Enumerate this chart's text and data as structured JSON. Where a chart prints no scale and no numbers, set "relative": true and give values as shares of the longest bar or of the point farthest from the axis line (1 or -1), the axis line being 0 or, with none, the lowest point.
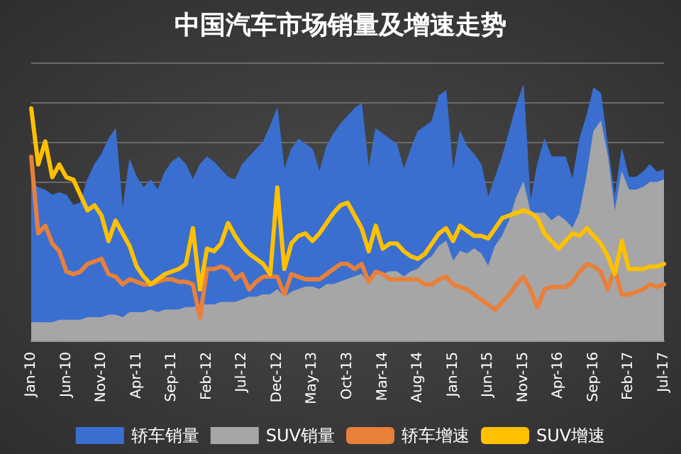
{
  "chart_data": {
    "type": "area",
    "title": "中国汽车市场销量及增速走势",
    "relative": true,
    "grid": "y",
    "legend": "bottom",
    "categories": [
      "Jan-10",
      null,
      null,
      null,
      null,
      "Jun-10",
      null,
      null,
      null,
      null,
      "Nov-10",
      null,
      null,
      null,
      null,
      "Apr-11",
      null,
      null,
      null,
      null,
      "Sep-11",
      null,
      null,
      null,
      null,
      "Feb-12",
      null,
      null,
      null,
      null,
      "Jul-12",
      null,
      null,
      null,
      null,
      "Dec-12",
      null,
      null,
      null,
      null,
      "May-13",
      null,
      null,
      null,
      null,
      "Oct-13",
      null,
      null,
      null,
      null,
      "Mar-14",
      null,
      null,
      null,
      null,
      "Aug-14",
      null,
      null,
      null,
      null,
      "Jan-15",
      null,
      null,
      null,
      null,
      "Jun-15",
      null,
      null,
      null,
      null,
      "Nov-15",
      null,
      null,
      null,
      null,
      "Apr-16",
      null,
      null,
      null,
      null,
      "Sep-16",
      null,
      null,
      null,
      null,
      "Feb-17",
      null,
      null,
      null,
      null,
      "Jul-17"
    ],
    "series": [
      {
        "name": "轿车销量",
        "color": "#3a6fd0",
        "values": [
          0.62,
          0.6,
          0.59,
          0.57,
          0.58,
          0.57,
          0.53,
          0.54,
          0.63,
          0.69,
          0.73,
          0.79,
          0.83,
          0.51,
          0.71,
          0.64,
          0.6,
          0.63,
          0.59,
          0.66,
          0.7,
          0.72,
          0.69,
          0.63,
          0.69,
          0.72,
          0.7,
          0.67,
          0.64,
          0.63,
          0.69,
          0.72,
          0.75,
          0.78,
          0.84,
          0.91,
          0.67,
          0.75,
          0.79,
          0.77,
          0.75,
          0.66,
          0.76,
          0.81,
          0.85,
          0.88,
          0.91,
          0.93,
          0.67,
          0.83,
          0.81,
          0.79,
          0.77,
          0.67,
          0.75,
          0.82,
          0.84,
          0.86,
          0.96,
          0.98,
          0.66,
          0.82,
          0.76,
          0.73,
          0.69,
          0.56,
          0.64,
          0.72,
          0.82,
          0.92,
          1.0,
          0.54,
          0.69,
          0.79,
          0.72,
          0.72,
          0.72,
          0.63,
          0.79,
          0.88,
          0.99,
          0.97,
          0.76,
          0.56,
          0.75,
          0.64,
          0.64,
          0.66,
          0.69,
          0.66,
          0.67
        ]
      },
      {
        "name": "SUV销量",
        "color": "#a6a6a6",
        "values": [
          0.07,
          0.07,
          0.07,
          0.07,
          0.08,
          0.08,
          0.08,
          0.08,
          0.09,
          0.09,
          0.09,
          0.1,
          0.1,
          0.09,
          0.11,
          0.11,
          0.11,
          0.12,
          0.11,
          0.12,
          0.12,
          0.12,
          0.13,
          0.13,
          0.14,
          0.14,
          0.14,
          0.15,
          0.15,
          0.15,
          0.16,
          0.17,
          0.17,
          0.18,
          0.18,
          0.2,
          0.17,
          0.19,
          0.2,
          0.21,
          0.21,
          0.2,
          0.22,
          0.22,
          0.23,
          0.24,
          0.25,
          0.26,
          0.22,
          0.26,
          0.26,
          0.27,
          0.27,
          0.25,
          0.27,
          0.28,
          0.31,
          0.33,
          0.37,
          0.39,
          0.31,
          0.35,
          0.34,
          0.36,
          0.34,
          0.29,
          0.37,
          0.41,
          0.47,
          0.56,
          0.62,
          0.5,
          0.5,
          0.5,
          0.47,
          0.49,
          0.47,
          0.44,
          0.5,
          0.64,
          0.82,
          0.86,
          0.72,
          0.5,
          0.66,
          0.59,
          0.59,
          0.6,
          0.62,
          0.62,
          0.63
        ]
      },
      {
        "name": "轿车增速",
        "type": "line",
        "color": "#e8803a",
        "values": [
          0.72,
          0.42,
          0.45,
          0.38,
          0.35,
          0.27,
          0.26,
          0.27,
          0.3,
          0.31,
          0.32,
          0.26,
          0.25,
          0.22,
          0.24,
          0.23,
          0.22,
          0.22,
          0.23,
          0.24,
          0.24,
          0.23,
          0.23,
          0.22,
          0.09,
          0.28,
          0.28,
          0.29,
          0.28,
          0.24,
          0.26,
          0.2,
          0.23,
          0.25,
          0.25,
          0.25,
          0.18,
          0.26,
          0.25,
          0.24,
          0.24,
          0.24,
          0.26,
          0.28,
          0.3,
          0.3,
          0.28,
          0.3,
          0.23,
          0.27,
          0.26,
          0.24,
          0.24,
          0.24,
          0.24,
          0.24,
          0.22,
          0.22,
          0.24,
          0.25,
          0.22,
          0.21,
          0.2,
          0.18,
          0.16,
          0.14,
          0.12,
          0.15,
          0.18,
          0.22,
          0.25,
          0.2,
          0.13,
          0.2,
          0.21,
          0.21,
          0.21,
          0.23,
          0.27,
          0.3,
          0.29,
          0.27,
          0.2,
          0.28,
          0.18,
          0.18,
          0.19,
          0.2,
          0.22,
          0.21,
          0.22
        ]
      },
      {
        "name": "SUV增速",
        "type": "line",
        "color": "#ffc000",
        "values": [
          0.91,
          0.69,
          0.78,
          0.64,
          0.69,
          0.64,
          0.63,
          0.57,
          0.51,
          0.53,
          0.49,
          0.39,
          0.47,
          0.42,
          0.37,
          0.29,
          0.25,
          0.22,
          0.24,
          0.26,
          0.27,
          0.28,
          0.3,
          0.44,
          0.2,
          0.36,
          0.35,
          0.38,
          0.46,
          0.41,
          0.37,
          0.34,
          0.32,
          0.3,
          0.26,
          0.6,
          0.28,
          0.38,
          0.41,
          0.42,
          0.39,
          0.42,
          0.46,
          0.5,
          0.53,
          0.54,
          0.49,
          0.44,
          0.35,
          0.45,
          0.36,
          0.38,
          0.38,
          0.35,
          0.33,
          0.32,
          0.34,
          0.38,
          0.42,
          0.44,
          0.39,
          0.45,
          0.43,
          0.41,
          0.41,
          0.4,
          0.44,
          0.48,
          0.49,
          0.5,
          0.51,
          0.5,
          0.48,
          0.42,
          0.39,
          0.36,
          0.39,
          0.42,
          0.41,
          0.44,
          0.41,
          0.38,
          0.33,
          0.26,
          0.39,
          0.28,
          0.28,
          0.28,
          0.29,
          0.29,
          0.3
        ]
      }
    ]
  }
}
